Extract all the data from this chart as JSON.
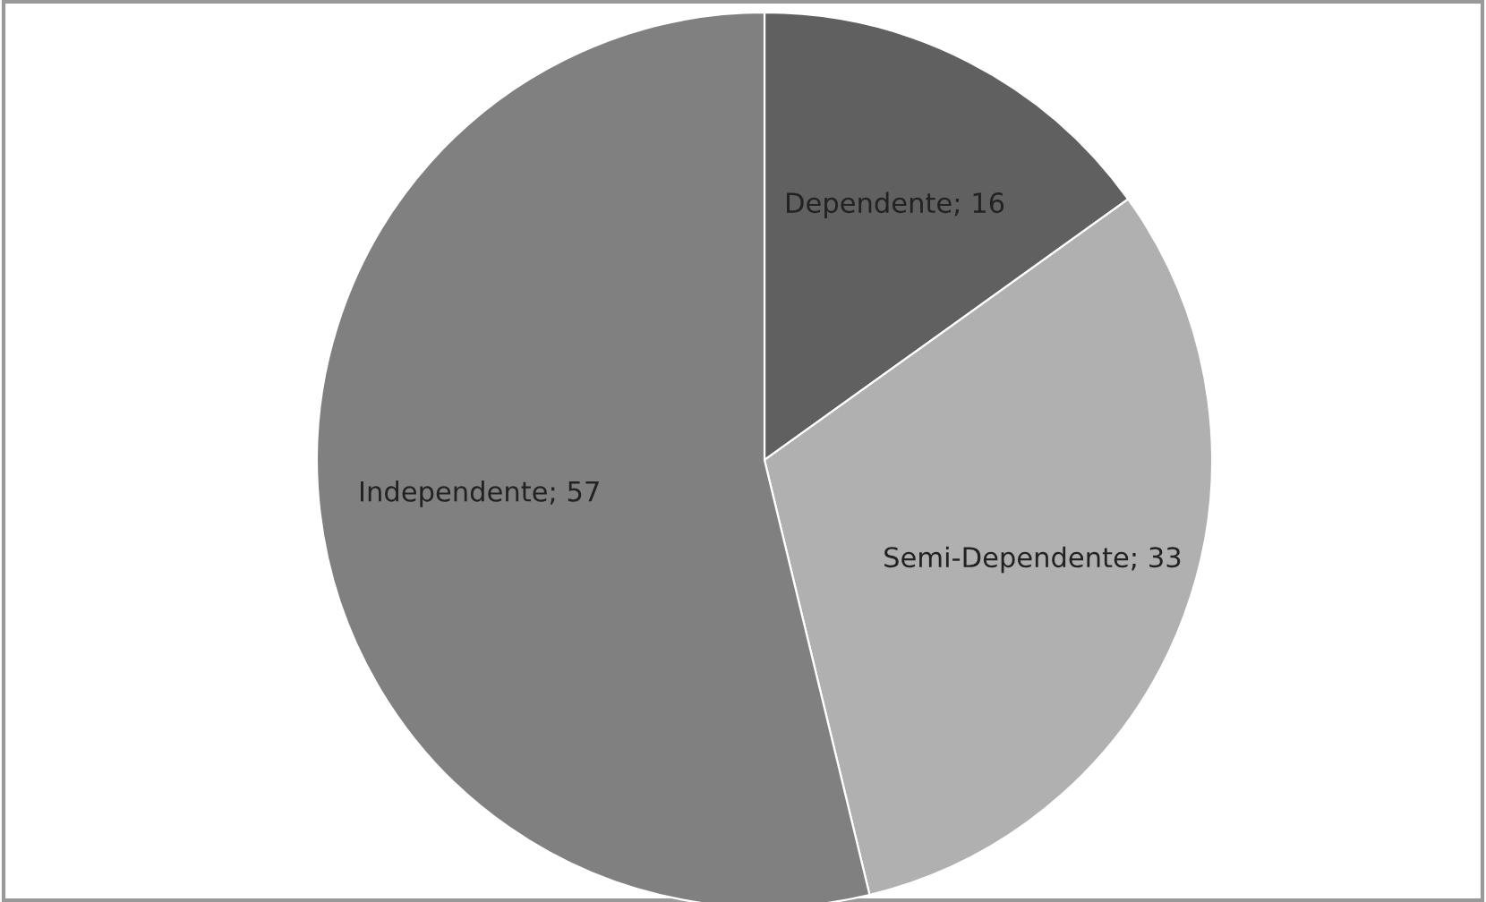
{
  "chart_data": {
    "type": "pie",
    "categories": [
      "Dependente",
      "Semi-Dependente",
      "Independente"
    ],
    "values": [
      16,
      33,
      57
    ],
    "colors": [
      "#606060",
      "#b0b0b0",
      "#808080"
    ],
    "value_labels": [
      "; 16",
      "; 33",
      "; 57"
    ],
    "legend": false
  }
}
